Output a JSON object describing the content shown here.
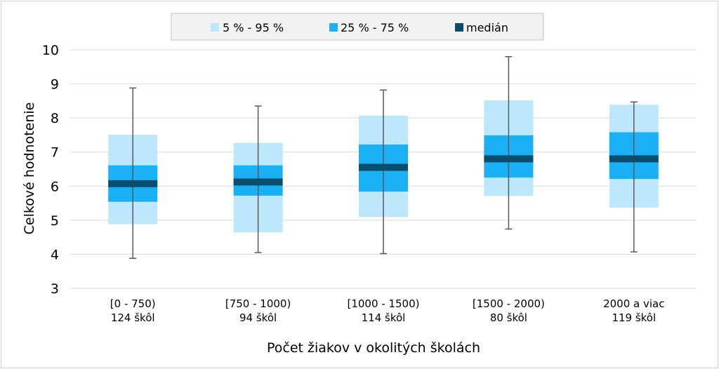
{
  "chart_data": {
    "type": "box",
    "title": "",
    "xlabel": "Počet žiakov v okolitých školách",
    "ylabel": "Celkové hodnotenie",
    "ylim": [
      3,
      10
    ],
    "yticks": [
      "3",
      "4",
      "5",
      "6",
      "7",
      "8",
      "9",
      "10"
    ],
    "grid": true,
    "legend_position": "top",
    "legend": [
      {
        "label": "5 % - 95 %",
        "color": "#bde8fb"
      },
      {
        "label": "25 % - 75 %",
        "color": "#1ab0f5"
      },
      {
        "label": "medián",
        "color": "#0a4e6e"
      }
    ],
    "categories": [
      {
        "label": "[0 - 750)",
        "count": "124 škôl"
      },
      {
        "label": "[750 - 1000)",
        "count": "94 škôl"
      },
      {
        "label": "[1000 - 1500)",
        "count": "114 škôl"
      },
      {
        "label": "[1500 - 2000)",
        "count": "80 škôl"
      },
      {
        "label": "2000 a viac",
        "count": "119 škôl"
      }
    ],
    "series": {
      "min": [
        3.88,
        4.05,
        4.02,
        4.74,
        4.07
      ],
      "p5": [
        4.88,
        4.64,
        5.09,
        5.71,
        5.37
      ],
      "p25": [
        5.54,
        5.72,
        5.84,
        6.25,
        6.21
      ],
      "median": [
        6.07,
        6.12,
        6.55,
        6.8,
        6.8
      ],
      "p75": [
        6.61,
        6.61,
        7.22,
        7.49,
        7.58
      ],
      "p95": [
        7.51,
        7.27,
        8.07,
        8.52,
        8.39
      ],
      "max": [
        8.88,
        8.35,
        8.82,
        9.8,
        8.47
      ]
    },
    "colors": {
      "outer": "#bde8fb",
      "inner": "#1ab0f5",
      "median": "#0a4e6e",
      "whisker": "#595959",
      "grid": "#d9d9d9",
      "legend_bg": "#f2f2f2",
      "legend_border": "#bfbfbf"
    }
  }
}
